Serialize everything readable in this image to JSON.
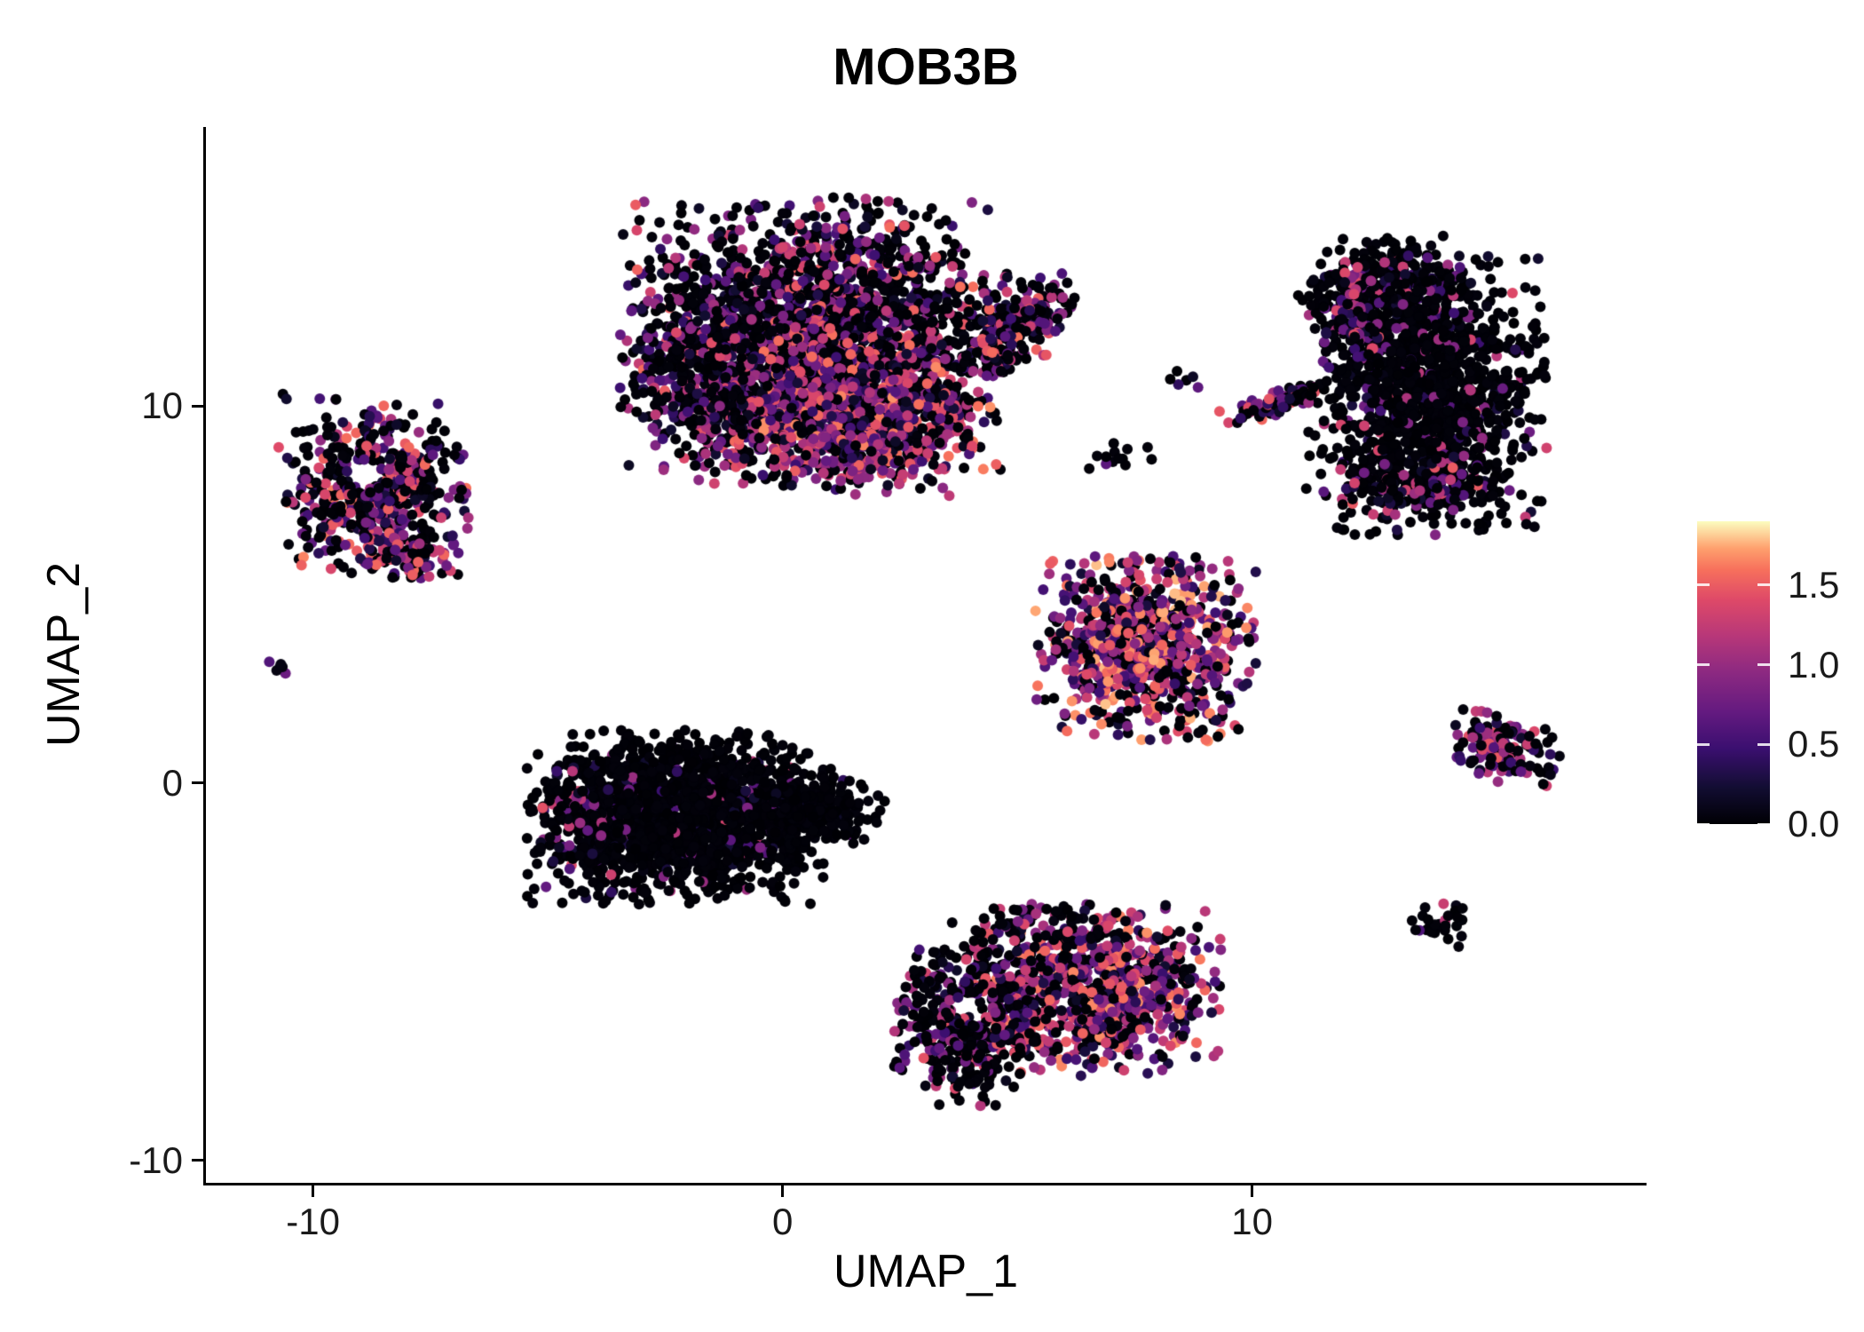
{
  "chart_data": {
    "type": "scatter",
    "title": "MOB3B",
    "xlabel": "UMAP_1",
    "ylabel": "UMAP_2",
    "xlim": [
      -12.3,
      18.4
    ],
    "ylim": [
      -10.6,
      17.4
    ],
    "grid": false,
    "point_radius_px": 6,
    "xticks": [
      {
        "value": -10,
        "label": "-10"
      },
      {
        "value": 0,
        "label": "0"
      },
      {
        "value": 10,
        "label": "10"
      }
    ],
    "yticks": [
      {
        "value": -10,
        "label": "-10"
      },
      {
        "value": 0,
        "label": "0"
      },
      {
        "value": 10,
        "label": "10"
      }
    ],
    "colorbar": {
      "position": "right",
      "colormap": "magma",
      "vmin": 0,
      "vmax": 1.9,
      "ticks": [
        {
          "value": 0.0,
          "label": "0.0"
        },
        {
          "value": 0.5,
          "label": "0.5"
        },
        {
          "value": 1.0,
          "label": "1.0"
        },
        {
          "value": 1.5,
          "label": "1.5"
        }
      ],
      "stops": [
        [
          0.0,
          "#000004"
        ],
        [
          0.12,
          "#120d32"
        ],
        [
          0.25,
          "#3b0f70"
        ],
        [
          0.37,
          "#641a80"
        ],
        [
          0.5,
          "#8c2981"
        ],
        [
          0.62,
          "#b73779"
        ],
        [
          0.74,
          "#de4968"
        ],
        [
          0.84,
          "#f7705c"
        ],
        [
          0.91,
          "#fe9f6d"
        ],
        [
          1.0,
          "#fcfdbf"
        ]
      ]
    },
    "clusters": [
      {
        "name": "top-main",
        "cx": 0.7,
        "cy": 11.8,
        "sx": 1.9,
        "sy": 1.7,
        "n": 2400,
        "p0": 0.52,
        "pow": 1.1,
        "maxv": 1.6
      },
      {
        "name": "top-lower-band",
        "cx": 1.3,
        "cy": 9.6,
        "sx": 1.5,
        "sy": 0.9,
        "n": 800,
        "p0": 0.22,
        "pow": 0.85,
        "maxv": 1.7
      },
      {
        "name": "top-left-edge",
        "cx": -1.7,
        "cy": 10.8,
        "sx": 0.65,
        "sy": 1.1,
        "n": 240,
        "p0": 0.5,
        "pow": 1.1,
        "maxv": 1.5
      },
      {
        "name": "top-right-arm",
        "cx": 5.2,
        "cy": 12.5,
        "sx": 0.55,
        "sy": 0.35,
        "rot": 28,
        "n": 150,
        "p0": 0.45,
        "pow": 1.0,
        "maxv": 1.6
      },
      {
        "name": "top-right-arm-lower",
        "cx": 4.6,
        "cy": 11.4,
        "sx": 0.45,
        "sy": 0.3,
        "rot": 20,
        "n": 80,
        "p0": 0.4,
        "pow": 1.0,
        "maxv": 1.6
      },
      {
        "name": "left-cluster",
        "cx": -8.7,
        "cy": 7.9,
        "sx": 0.95,
        "sy": 1.15,
        "n": 540,
        "p0": 0.45,
        "pow": 0.9,
        "maxv": 1.65,
        "hole": [
          -8.9,
          8.2,
          0.38
        ]
      },
      {
        "name": "left-cluster-tail",
        "cx": -8.1,
        "cy": 6.1,
        "sx": 0.5,
        "sy": 0.32,
        "n": 70,
        "p0": 0.3,
        "pow": 0.8,
        "maxv": 1.6
      },
      {
        "name": "tiny-left-speck",
        "cx": -10.7,
        "cy": 3.2,
        "sx": 0.13,
        "sy": 0.16,
        "n": 6,
        "p0": 0.35,
        "pow": 1.0,
        "maxv": 0.9
      },
      {
        "name": "mid-dark-main",
        "cx": -2.3,
        "cy": -0.9,
        "sx": 1.45,
        "sy": 1.05,
        "n": 1550,
        "p0": 0.9,
        "pow": 1.4,
        "maxv": 1.35
      },
      {
        "name": "mid-dark-left-edge",
        "cx": -4.3,
        "cy": -0.8,
        "sx": 0.4,
        "sy": 0.75,
        "n": 110,
        "p0": 0.6,
        "pow": 1.0,
        "maxv": 1.5
      },
      {
        "name": "mid-dark-right-tip",
        "cx": 0.6,
        "cy": -0.6,
        "sx": 0.7,
        "sy": 0.5,
        "rot": -15,
        "n": 260,
        "p0": 0.93,
        "pow": 1.4,
        "maxv": 1.2
      },
      {
        "name": "center-right-high",
        "cx": 7.7,
        "cy": 3.6,
        "sx": 1.1,
        "sy": 1.15,
        "n": 850,
        "p0": 0.28,
        "pow": 0.8,
        "maxv": 1.8
      },
      {
        "name": "mid-specks-a",
        "cx": 7.2,
        "cy": 8.6,
        "sx": 0.5,
        "sy": 0.28,
        "n": 13,
        "p0": 0.85,
        "pow": 1.0,
        "maxv": 1.0
      },
      {
        "name": "mid-specks-b",
        "cx": 8.5,
        "cy": 10.6,
        "sx": 0.28,
        "sy": 0.2,
        "n": 6,
        "p0": 0.8,
        "pow": 1.0,
        "maxv": 0.8
      },
      {
        "name": "diagonal-streak",
        "cx": 10.6,
        "cy": 10.1,
        "sx": 0.6,
        "sy": 0.15,
        "rot": 24,
        "n": 85,
        "p0": 0.35,
        "pow": 0.9,
        "maxv": 1.6
      },
      {
        "name": "right-big-main",
        "cx": 13.7,
        "cy": 10.3,
        "sx": 1.2,
        "sy": 1.7,
        "n": 1300,
        "p0": 0.84,
        "pow": 1.3,
        "maxv": 1.4
      },
      {
        "name": "right-big-top",
        "cx": 12.9,
        "cy": 13.2,
        "sx": 0.9,
        "sy": 0.6,
        "n": 270,
        "p0": 0.8,
        "pow": 1.2,
        "maxv": 1.3
      },
      {
        "name": "right-big-left-edge",
        "cx": 12.3,
        "cy": 12.3,
        "sx": 0.38,
        "sy": 0.7,
        "n": 110,
        "p0": 0.5,
        "pow": 1.0,
        "maxv": 1.5
      },
      {
        "name": "right-big-bottom-edge",
        "cx": 13.5,
        "cy": 7.9,
        "sx": 0.8,
        "sy": 0.38,
        "n": 140,
        "p0": 0.55,
        "pow": 1.0,
        "maxv": 1.5
      },
      {
        "name": "right-chevron",
        "cx": 15.3,
        "cy": 0.9,
        "sx": 0.6,
        "sy": 0.4,
        "rot": -18,
        "n": 130,
        "p0": 0.4,
        "pow": 0.9,
        "maxv": 1.5
      },
      {
        "name": "bottom-high",
        "cx": 6.6,
        "cy": -5.5,
        "sx": 1.25,
        "sy": 1.05,
        "n": 850,
        "p0": 0.25,
        "pow": 0.85,
        "maxv": 1.7
      },
      {
        "name": "bottom-left-dark",
        "cx": 3.9,
        "cy": -6.4,
        "sx": 0.7,
        "sy": 1.0,
        "n": 420,
        "p0": 0.6,
        "pow": 1.0,
        "maxv": 1.5,
        "hole": [
          4.05,
          -6.0,
          0.42
        ]
      },
      {
        "name": "bottom-top-specks",
        "cx": 5.3,
        "cy": -3.9,
        "sx": 0.85,
        "sy": 0.33,
        "n": 70,
        "p0": 0.65,
        "pow": 1.0,
        "maxv": 1.4
      },
      {
        "name": "bottom-right-small",
        "cx": 14.1,
        "cy": -3.8,
        "sx": 0.32,
        "sy": 0.32,
        "n": 28,
        "p0": 0.75,
        "pow": 1.0,
        "maxv": 1.3
      }
    ]
  }
}
